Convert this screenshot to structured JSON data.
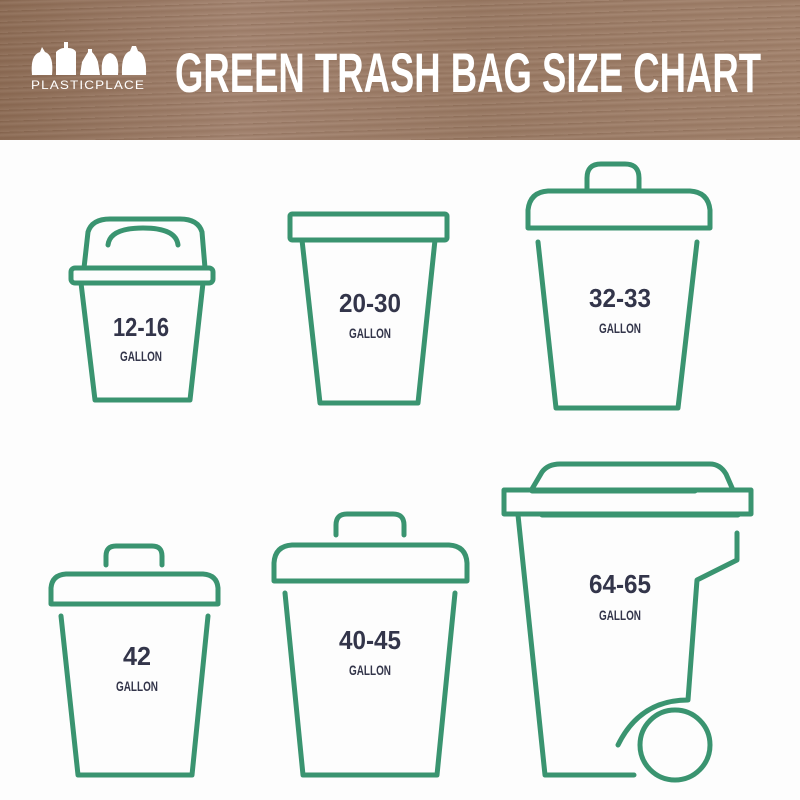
{
  "header": {
    "logo_text": "PLASTICPLACE",
    "title": "GREEN TRASH BAG SIZE CHART"
  },
  "colors": {
    "bin_outline": "#3a9470",
    "label_text": "#33354a",
    "title_text": "#ffffff"
  },
  "bins": [
    {
      "size": "12-16",
      "unit": "GALLON"
    },
    {
      "size": "20-30",
      "unit": "GALLON"
    },
    {
      "size": "32-33",
      "unit": "GALLON"
    },
    {
      "size": "42",
      "unit": "GALLON"
    },
    {
      "size": "40-45",
      "unit": "GALLON"
    },
    {
      "size": "64-65",
      "unit": "GALLON"
    }
  ]
}
